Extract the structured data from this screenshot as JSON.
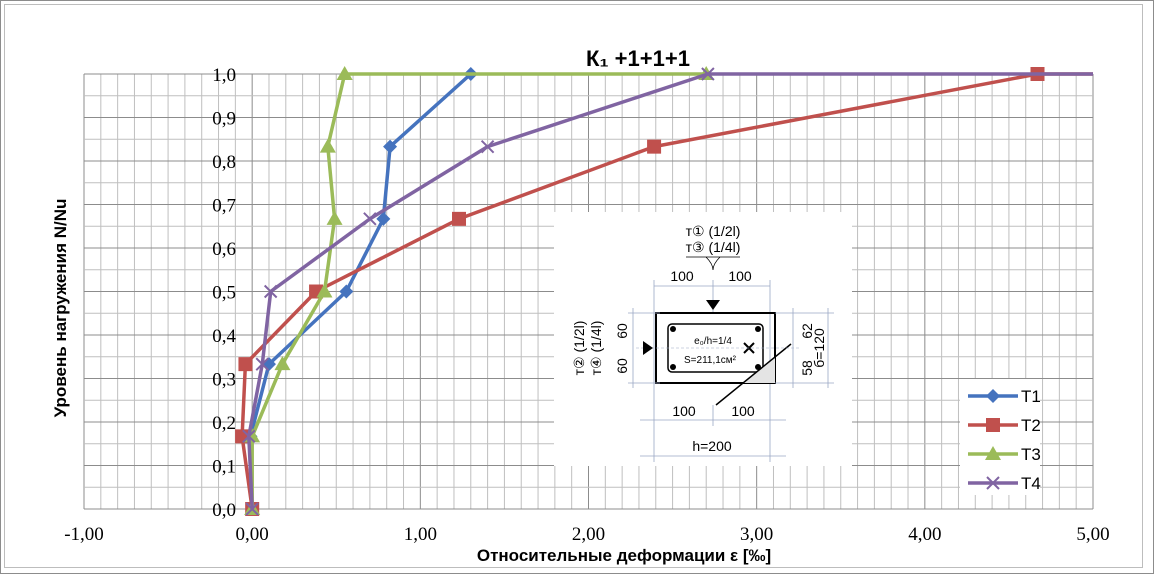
{
  "chart_data": {
    "type": "line",
    "title": "К₁ +1+1+1",
    "xlabel": "Относительные деформации ε [‰]",
    "ylabel": "Уровень нагружения N/Nu",
    "xlim": [
      -1,
      5
    ],
    "ylim": [
      0,
      1
    ],
    "x_ticks": [
      "-1,00",
      "0,00",
      "1,00",
      "2,00",
      "3,00",
      "4,00",
      "5,00"
    ],
    "y_ticks": [
      "0,0",
      "0,1",
      "0,2",
      "0,3",
      "0,4",
      "0,5",
      "0,6",
      "0,7",
      "0,8",
      "0,9",
      "1,0"
    ],
    "grid": true,
    "legend_position": "bottom-right",
    "series": [
      {
        "name": "T1",
        "color": "#4573be",
        "marker": "diamond",
        "points": [
          [
            0.0,
            0.0
          ],
          [
            -0.01,
            0.167
          ],
          [
            0.1,
            0.333
          ],
          [
            0.56,
            0.5
          ],
          [
            0.78,
            0.667
          ],
          [
            0.82,
            0.833
          ],
          [
            1.3,
            1.0
          ]
        ]
      },
      {
        "name": "T2",
        "color": "#c0504d",
        "marker": "square",
        "points": [
          [
            0.0,
            0.0
          ],
          [
            -0.06,
            0.167
          ],
          [
            -0.04,
            0.333
          ],
          [
            0.38,
            0.5
          ],
          [
            1.23,
            0.667
          ],
          [
            2.39,
            0.833
          ],
          [
            4.67,
            1.0
          ],
          [
            5.0,
            1.0
          ]
        ]
      },
      {
        "name": "T3",
        "color": "#9bbb59",
        "marker": "triangle",
        "points": [
          [
            0.0,
            0.0
          ],
          [
            0.0,
            0.167
          ],
          [
            0.18,
            0.333
          ],
          [
            0.43,
            0.5
          ],
          [
            0.49,
            0.667
          ],
          [
            0.45,
            0.833
          ],
          [
            0.55,
            1.0
          ],
          [
            2.7,
            1.0
          ]
        ]
      },
      {
        "name": "T4",
        "color": "#8064a2",
        "marker": "x",
        "points": [
          [
            0.0,
            0.0
          ],
          [
            -0.02,
            0.167
          ],
          [
            0.06,
            0.333
          ],
          [
            0.11,
            0.5
          ],
          [
            0.7,
            0.667
          ],
          [
            1.4,
            0.833
          ],
          [
            2.71,
            1.0
          ],
          [
            5.0,
            1.0
          ]
        ]
      }
    ]
  },
  "diagram": {
    "callout_top_1": "т① (1/2l)",
    "callout_top_2": "т③ (1/4l)",
    "callout_left_1": "т② (1/2l)",
    "callout_left_2": "т④ (1/4l)",
    "dim_top_left": "100",
    "dim_top_right": "100",
    "dim_bottom_left": "100",
    "dim_bottom_right": "100",
    "dim_left_top": "60",
    "dim_left_bottom": "60",
    "dim_right_top": "62",
    "dim_right_bottom": "58",
    "dim_height": "б=120",
    "dim_width": "h=200",
    "ratio_label": "e₀/h=1/4",
    "area_label": "S=211,1см²"
  }
}
